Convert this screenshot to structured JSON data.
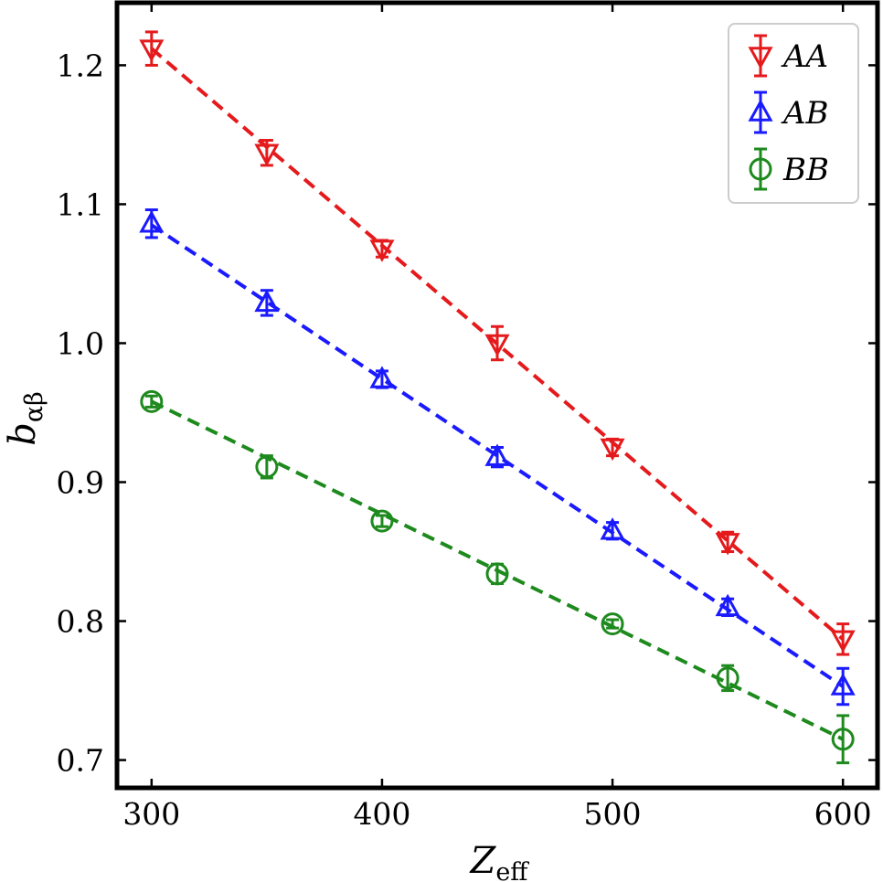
{
  "chart_data": {
    "type": "scatter",
    "xlabel": "Z",
    "xlabel_sub": "eff",
    "ylabel": "b",
    "ylabel_sub": "αβ",
    "xlim": [
      285,
      615
    ],
    "ylim": [
      0.68,
      1.245
    ],
    "xticks": [
      300,
      400,
      500,
      600
    ],
    "yticks": [
      0.7,
      0.8,
      0.9,
      1.0,
      1.1,
      1.2
    ],
    "xtick_labels": [
      "300",
      "400",
      "500",
      "600"
    ],
    "ytick_labels": [
      "0.7",
      "0.8",
      "0.9",
      "1.0",
      "1.1",
      "1.2"
    ],
    "grid": false,
    "legend_position": "top-right",
    "x": [
      300,
      350,
      400,
      450,
      500,
      550,
      600
    ],
    "series": [
      {
        "name": "AA",
        "color": "#e41a1c",
        "marker": "triangle-down",
        "values": [
          1.212,
          1.137,
          1.068,
          1.0,
          0.925,
          0.857,
          0.787
        ],
        "errors": [
          0.012,
          0.009,
          0.006,
          0.012,
          0.006,
          0.007,
          0.011
        ],
        "fit": [
          [
            300,
            1.212
          ],
          [
            600,
            0.787
          ]
        ]
      },
      {
        "name": "AB",
        "color": "#1a1aff",
        "marker": "triangle-up",
        "values": [
          1.086,
          1.029,
          0.974,
          0.918,
          0.865,
          0.81,
          0.753
        ],
        "errors": [
          0.01,
          0.009,
          0.006,
          0.007,
          0.006,
          0.006,
          0.013
        ],
        "fit": [
          [
            300,
            1.085
          ],
          [
            600,
            0.753
          ]
        ]
      },
      {
        "name": "BB",
        "color": "#1e8a1e",
        "marker": "circle",
        "values": [
          0.958,
          0.911,
          0.872,
          0.834,
          0.798,
          0.759,
          0.715
        ],
        "errors": [
          0.004,
          0.008,
          0.004,
          0.007,
          0.003,
          0.009,
          0.017
        ],
        "fit": [
          [
            300,
            0.958
          ],
          [
            600,
            0.715
          ]
        ]
      }
    ]
  }
}
